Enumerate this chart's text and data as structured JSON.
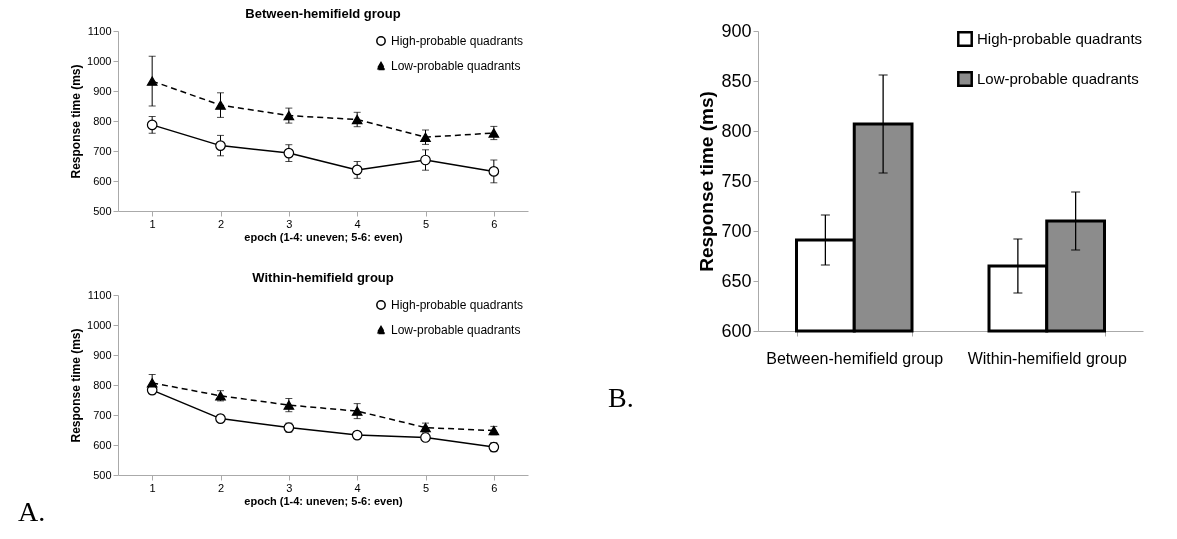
{
  "chart_data": [
    {
      "type": "line",
      "title": "Between-hemifield group",
      "xlabel": "epoch (1-4: uneven; 5-6: even)",
      "ylabel": "Response time (ms)",
      "categories": [
        "1",
        "2",
        "3",
        "4",
        "5",
        "6"
      ],
      "ylim": [
        500,
        1100
      ],
      "yticks": [
        500,
        600,
        700,
        800,
        900,
        1000,
        1100
      ],
      "legend": "top right",
      "series": [
        {
          "name": "High-probable quadrants",
          "color": "#000000",
          "marker": "circle",
          "line_style": "solid",
          "values": [
            787,
            718,
            693,
            637,
            670,
            632
          ],
          "errors": [
            28,
            34,
            28,
            28,
            34,
            38
          ]
        },
        {
          "name": "Low-probable quadrants",
          "color": "#000000",
          "marker": "triangle",
          "line_style": "dashed",
          "values": [
            933,
            853,
            818,
            805,
            746,
            760
          ],
          "errors": [
            83,
            41,
            25,
            24,
            24,
            22
          ]
        }
      ]
    },
    {
      "type": "line",
      "title": "Within-hemifield group",
      "xlabel": "epoch (1-4: uneven; 5-6: even)",
      "ylabel": "Response time (ms)",
      "categories": [
        "1",
        "2",
        "3",
        "4",
        "5",
        "6"
      ],
      "ylim": [
        500,
        1100
      ],
      "yticks": [
        500,
        600,
        700,
        800,
        900,
        1000,
        1100
      ],
      "legend": "top right",
      "annotations": [
        "A."
      ],
      "series": [
        {
          "name": "High-probable quadrants",
          "color": "#000000",
          "marker": "circle",
          "line_style": "solid",
          "values": [
            783,
            688,
            658,
            633,
            625,
            593
          ],
          "errors": [
            12,
            12,
            15,
            12,
            12,
            15
          ]
        },
        {
          "name": "Low-probable quadrants",
          "color": "#000000",
          "marker": "triangle",
          "line_style": "dashed",
          "values": [
            807,
            764,
            733,
            713,
            658,
            648
          ],
          "errors": [
            28,
            17,
            22,
            25,
            15,
            14
          ]
        }
      ]
    },
    {
      "type": "bar",
      "ylabel": "Response time (ms)",
      "categories": [
        "Between-hemifield group",
        "Within-hemifield group"
      ],
      "ylim": [
        600,
        900
      ],
      "yticks": [
        600,
        650,
        700,
        750,
        800,
        850,
        900
      ],
      "legend": "top right",
      "annotations": [
        "B."
      ],
      "series": [
        {
          "name": "High-probable quadrants",
          "color": "#ffffff",
          "values": [
            691,
            665
          ],
          "errors": [
            25,
            27
          ]
        },
        {
          "name": "Low-probable quadrants",
          "color": "#8c8c8c",
          "values": [
            807,
            710
          ],
          "errors": [
            49,
            29
          ]
        }
      ]
    }
  ]
}
